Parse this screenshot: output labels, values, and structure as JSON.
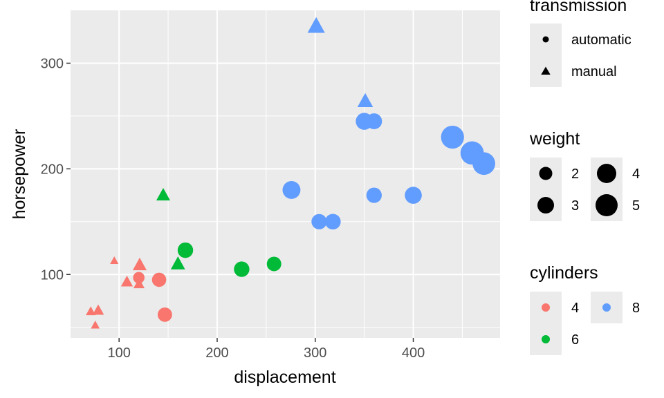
{
  "chart_data": {
    "type": "scatter",
    "title": "",
    "xlabel": "displacement",
    "ylabel": "horsepower",
    "xlim": [
      50.5,
      488.5
    ],
    "ylim": [
      40,
      350
    ],
    "xticks": [
      100,
      200,
      300,
      400
    ],
    "yticks": [
      100,
      200,
      300
    ],
    "grid": true,
    "legends": {
      "transmission": {
        "title": "transmission",
        "entries": [
          {
            "label": "automatic",
            "shape": "circle"
          },
          {
            "label": "manual",
            "shape": "triangle"
          }
        ]
      },
      "weight": {
        "title": "weight",
        "entries": [
          {
            "label": "2",
            "value": 2
          },
          {
            "label": "3",
            "value": 3
          },
          {
            "label": "4",
            "value": 4
          },
          {
            "label": "5",
            "value": 5
          }
        ]
      },
      "cylinders": {
        "title": "cylinders",
        "entries": [
          {
            "label": "4",
            "value": 4,
            "color": "#F8766D"
          },
          {
            "label": "6",
            "value": 6,
            "color": "#00BA38"
          },
          {
            "label": "8",
            "value": 8,
            "color": "#619CFF"
          }
        ]
      }
    },
    "points": [
      {
        "x": 160,
        "y": 110,
        "cyl": 6,
        "am": "manual",
        "wt": 2.62
      },
      {
        "x": 160,
        "y": 110,
        "cyl": 6,
        "am": "manual",
        "wt": 2.875
      },
      {
        "x": 108,
        "y": 93,
        "cyl": 4,
        "am": "manual",
        "wt": 2.32
      },
      {
        "x": 258,
        "y": 110,
        "cyl": 6,
        "am": "automatic",
        "wt": 3.215
      },
      {
        "x": 360,
        "y": 175,
        "cyl": 8,
        "am": "automatic",
        "wt": 3.44
      },
      {
        "x": 225,
        "y": 105,
        "cyl": 6,
        "am": "automatic",
        "wt": 3.46
      },
      {
        "x": 360,
        "y": 245,
        "cyl": 8,
        "am": "automatic",
        "wt": 3.57
      },
      {
        "x": 146.7,
        "y": 62,
        "cyl": 4,
        "am": "automatic",
        "wt": 3.19
      },
      {
        "x": 140.8,
        "y": 95,
        "cyl": 4,
        "am": "automatic",
        "wt": 3.15
      },
      {
        "x": 167.6,
        "y": 123,
        "cyl": 6,
        "am": "automatic",
        "wt": 3.44
      },
      {
        "x": 167.6,
        "y": 123,
        "cyl": 6,
        "am": "automatic",
        "wt": 3.44
      },
      {
        "x": 275.8,
        "y": 180,
        "cyl": 8,
        "am": "automatic",
        "wt": 4.07
      },
      {
        "x": 275.8,
        "y": 180,
        "cyl": 8,
        "am": "automatic",
        "wt": 3.73
      },
      {
        "x": 275.8,
        "y": 180,
        "cyl": 8,
        "am": "automatic",
        "wt": 3.78
      },
      {
        "x": 472,
        "y": 205,
        "cyl": 8,
        "am": "automatic",
        "wt": 5.25
      },
      {
        "x": 460,
        "y": 215,
        "cyl": 8,
        "am": "automatic",
        "wt": 5.424
      },
      {
        "x": 440,
        "y": 230,
        "cyl": 8,
        "am": "automatic",
        "wt": 5.345
      },
      {
        "x": 78.7,
        "y": 66,
        "cyl": 4,
        "am": "manual",
        "wt": 2.2
      },
      {
        "x": 75.7,
        "y": 52,
        "cyl": 4,
        "am": "manual",
        "wt": 1.615
      },
      {
        "x": 71.1,
        "y": 65,
        "cyl": 4,
        "am": "manual",
        "wt": 1.835
      },
      {
        "x": 120.1,
        "y": 97,
        "cyl": 4,
        "am": "automatic",
        "wt": 2.465
      },
      {
        "x": 318,
        "y": 150,
        "cyl": 8,
        "am": "automatic",
        "wt": 3.52
      },
      {
        "x": 304,
        "y": 150,
        "cyl": 8,
        "am": "automatic",
        "wt": 3.435
      },
      {
        "x": 350,
        "y": 245,
        "cyl": 8,
        "am": "automatic",
        "wt": 3.84
      },
      {
        "x": 400,
        "y": 175,
        "cyl": 8,
        "am": "automatic",
        "wt": 3.845
      },
      {
        "x": 79,
        "y": 66,
        "cyl": 4,
        "am": "manual",
        "wt": 1.935
      },
      {
        "x": 120.3,
        "y": 91,
        "cyl": 4,
        "am": "manual",
        "wt": 2.14
      },
      {
        "x": 95.1,
        "y": 113,
        "cyl": 4,
        "am": "manual",
        "wt": 1.513
      },
      {
        "x": 351,
        "y": 264,
        "cyl": 8,
        "am": "manual",
        "wt": 3.17
      },
      {
        "x": 145,
        "y": 175,
        "cyl": 6,
        "am": "manual",
        "wt": 2.77
      },
      {
        "x": 301,
        "y": 335,
        "cyl": 8,
        "am": "manual",
        "wt": 3.57
      },
      {
        "x": 121,
        "y": 109,
        "cyl": 4,
        "am": "manual",
        "wt": 2.78
      }
    ]
  }
}
